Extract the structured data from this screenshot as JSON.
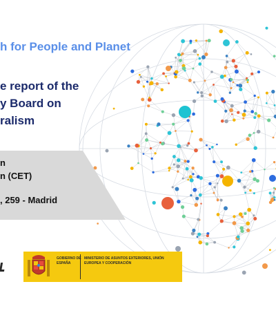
{
  "banner": {
    "tagline": "h for People and Planet",
    "heading_lines": [
      "e report of the",
      "y Board on",
      "ralism"
    ],
    "details_lines": [
      "n",
      "n (CET)"
    ],
    "venue": ", 259 - Madrid",
    "logo": {
      "gov_label": "GOBIERNO DE ESPAÑA",
      "ministry_label": "MINISTERIO DE ASUNTOS EXTERIORES, UNIÓN EUROPEA Y COOPERACIÓN"
    }
  },
  "colors": {
    "tagline": "#5a8fe8",
    "heading": "#1b2a6b",
    "logo_bg": "#f5c90f",
    "details_bg": "#d9d9d9"
  }
}
